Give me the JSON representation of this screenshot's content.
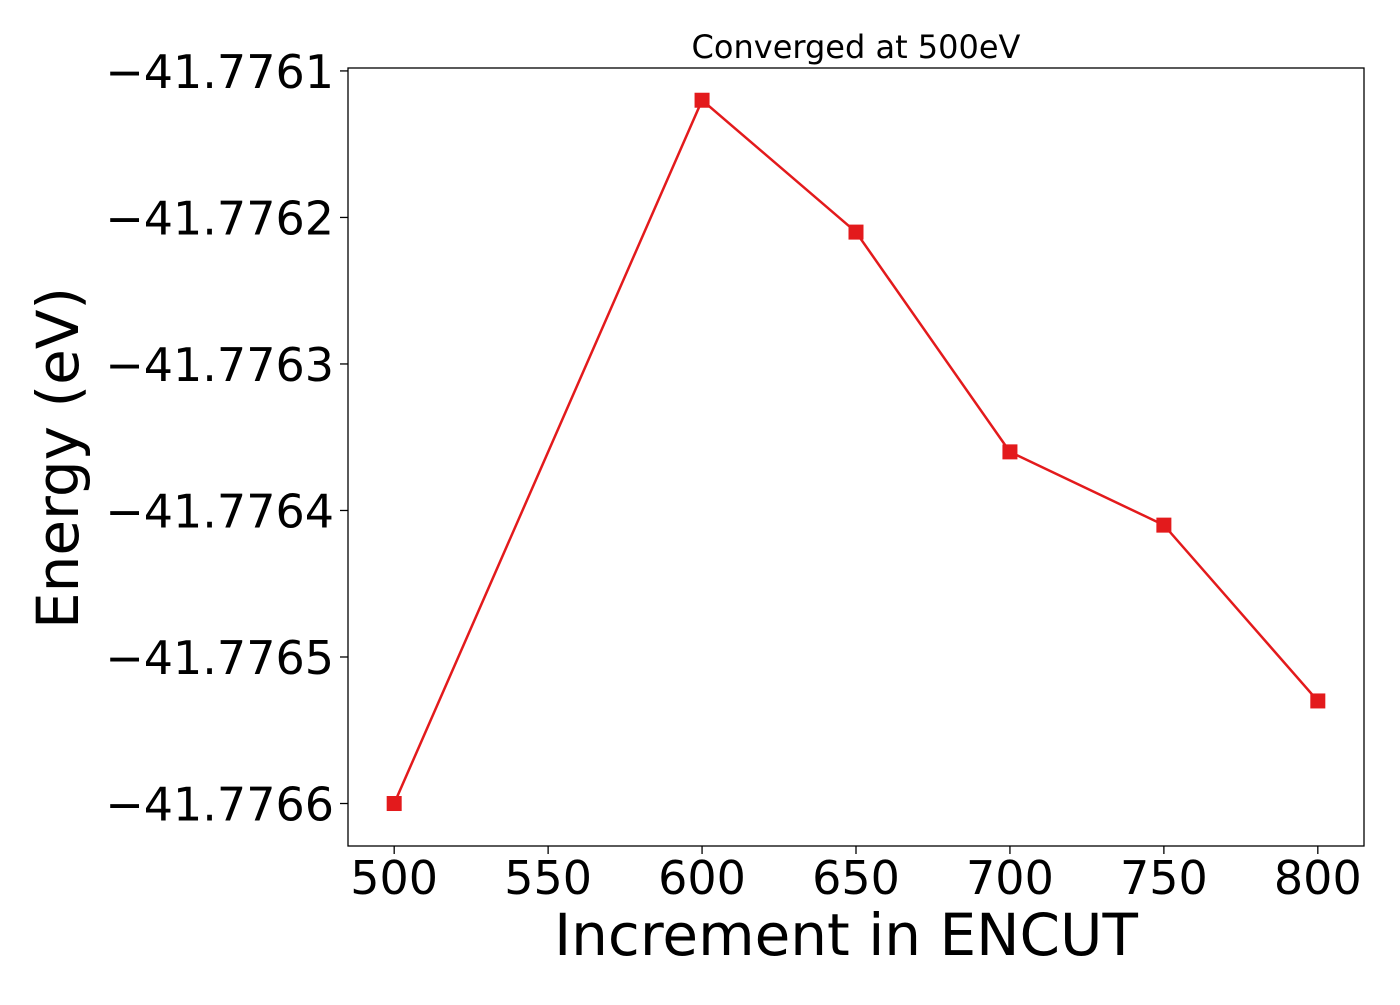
{
  "chart_data": {
    "type": "line",
    "title": "Converged at 500eV",
    "xlabel": "Increment in ENCUT",
    "ylabel": "Energy (eV)",
    "x": [
      500,
      600,
      650,
      700,
      750,
      800
    ],
    "series": [
      {
        "values": [
          -41.7766,
          -41.77612,
          -41.77621,
          -41.77636,
          -41.77641,
          -41.77653
        ],
        "color": "#e31a1c",
        "marker": "square"
      }
    ],
    "x_ticks": [
      500,
      550,
      600,
      650,
      700,
      750,
      800
    ],
    "x_tick_labels": [
      "500",
      "550",
      "600",
      "650",
      "700",
      "750",
      "800"
    ],
    "y_ticks": [
      -41.7761,
      -41.7762,
      -41.7763,
      -41.7764,
      -41.7765,
      -41.7766
    ],
    "y_tick_labels": [
      "−41.7761",
      "−41.7762",
      "−41.7763",
      "−41.7764",
      "−41.7765",
      "−41.7766"
    ],
    "xlim": [
      485,
      815
    ],
    "ylim": [
      -41.776629,
      -41.776098
    ],
    "grid": false,
    "legend": "none"
  }
}
